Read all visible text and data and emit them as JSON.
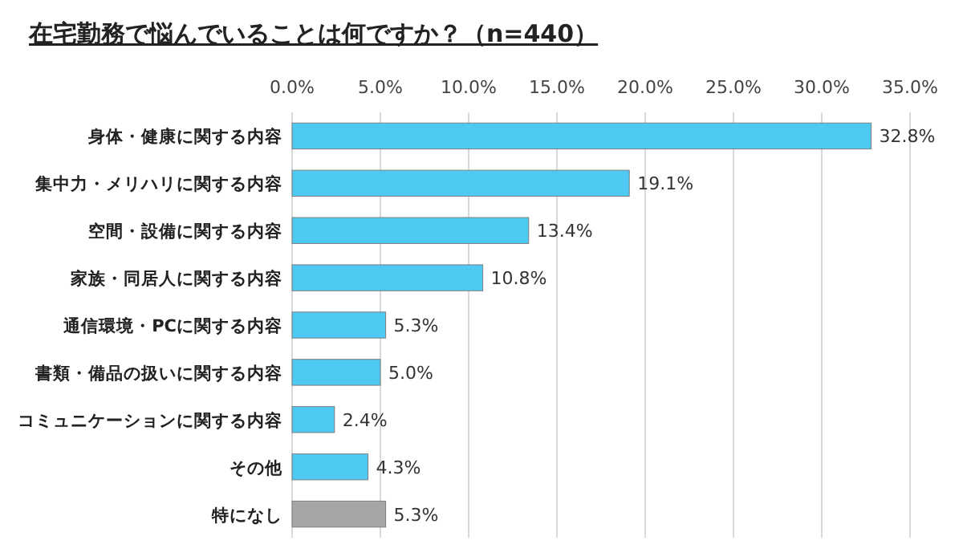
{
  "chart_data": {
    "type": "bar",
    "orientation": "horizontal",
    "title": "在宅勤務で悩んでいることは何ですか？（n=440）",
    "categories": [
      "身体・健康に関する内容",
      "集中力・メリハリに関する内容",
      "空間・設備に関する内容",
      "家族・同居人に関する内容",
      "通信環境・PCに関する内容",
      "書類・備品の扱いに関する内容",
      "コミュニケーションに関する内容",
      "その他",
      "特になし"
    ],
    "values": [
      32.8,
      19.1,
      13.4,
      10.8,
      5.3,
      5.0,
      2.4,
      4.3,
      5.3
    ],
    "value_labels": [
      "32.8%",
      "19.1%",
      "13.4%",
      "10.8%",
      "5.3%",
      "5.0%",
      "2.4%",
      "4.3%",
      "5.3%"
    ],
    "colors": [
      "#4dc9f2",
      "#4dc9f2",
      "#4dc9f2",
      "#4dc9f2",
      "#4dc9f2",
      "#4dc9f2",
      "#4dc9f2",
      "#4dc9f2",
      "#a6a6a6"
    ],
    "xlim": [
      0,
      35
    ],
    "xticks": [
      {
        "value": 0,
        "label": "0.0%"
      },
      {
        "value": 5,
        "label": "5.0%"
      },
      {
        "value": 10,
        "label": "10.0%"
      },
      {
        "value": 15,
        "label": "15.0%"
      },
      {
        "value": 20,
        "label": "20.0%"
      },
      {
        "value": 25,
        "label": "25.0%"
      },
      {
        "value": 30,
        "label": "30.0%"
      },
      {
        "value": 35,
        "label": "35.0%"
      }
    ],
    "grid": "x"
  }
}
